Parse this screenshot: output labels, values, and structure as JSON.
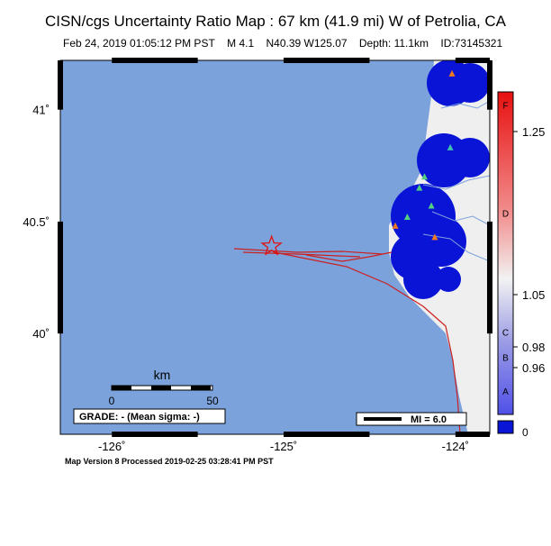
{
  "title": "CISN/cgs Uncertainty Ratio Map : 67 km (41.9 mi) W of Petrolia, CA",
  "subtitle": {
    "date": "Feb 24, 2019 01:05:12 PM PST",
    "magnitude": "M 4.1",
    "location": "N40.39 W125.07",
    "depth": "Depth: 11.1km",
    "id": "ID:73145321"
  },
  "map": {
    "lat_ticks": [
      {
        "value": 41.0,
        "label": "41˚"
      },
      {
        "value": 40.5,
        "label": "40.5˚"
      },
      {
        "value": 40.0,
        "label": "40˚"
      }
    ],
    "lon_ticks": [
      {
        "value": -126,
        "label": "-126˚"
      },
      {
        "value": -125,
        "label": "-125˚"
      },
      {
        "value": -124,
        "label": "-124˚"
      }
    ],
    "lon_range": [
      -126.3,
      -123.8
    ],
    "lat_range": [
      39.55,
      41.22
    ],
    "epicenter": {
      "lat": 40.39,
      "lon": -125.07
    },
    "stations": [
      {
        "lat": 41.16,
        "lon": -124.02,
        "color": "#f07820"
      },
      {
        "lat": 40.83,
        "lon": -124.03,
        "color": "#40c0b0"
      },
      {
        "lat": 40.7,
        "lon": -124.18,
        "color": "#50d080"
      },
      {
        "lat": 40.65,
        "lon": -124.21,
        "color": "#50d080"
      },
      {
        "lat": 40.57,
        "lon": -124.14,
        "color": "#50d080"
      },
      {
        "lat": 40.52,
        "lon": -124.28,
        "color": "#50d080"
      },
      {
        "lat": 40.48,
        "lon": -124.35,
        "color": "#f07820"
      },
      {
        "lat": 40.43,
        "lon": -124.12,
        "color": "#f07820"
      }
    ]
  },
  "scalebar": {
    "title": "km",
    "start": "0",
    "end": "50"
  },
  "grade_text": "GRADE: - (Mean sigma: -)",
  "mi_legend": "MI = 6.0",
  "colorbar": {
    "letters": [
      {
        "label": "F",
        "value": 1.35
      },
      {
        "label": "D",
        "value": 1.15
      },
      {
        "label": "C",
        "value": 1.0
      },
      {
        "label": "B",
        "value": 0.97
      },
      {
        "label": "A",
        "value": 0.93
      }
    ],
    "ticks": [
      {
        "label": "1.25",
        "value": 1.25
      },
      {
        "label": "1.05",
        "value": 1.05
      },
      {
        "label": "0.98",
        "value": 0.98
      },
      {
        "label": "0.96",
        "value": 0.96
      }
    ],
    "zero_label": "0"
  },
  "footer": "Map Version 8 Processed 2019-02-25 03:28:41 PM PST"
}
